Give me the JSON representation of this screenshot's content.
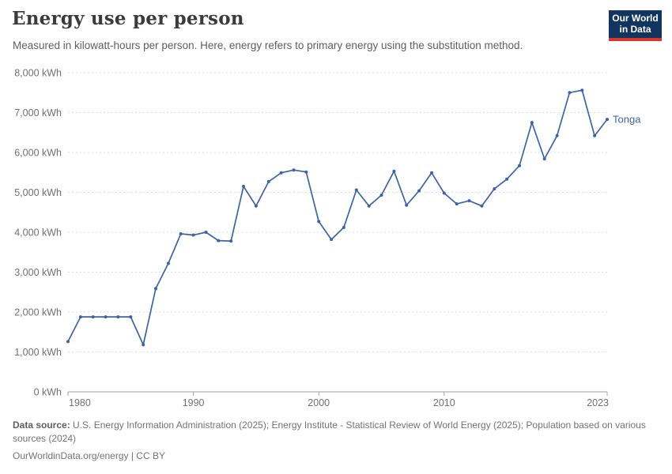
{
  "header": {
    "logo": {
      "line1": "Our World",
      "line2": "in Data"
    }
  },
  "chart_data": {
    "type": "line",
    "title": "Energy use per person",
    "subtitle": "Measured in kilowatt-hours per person. Here, energy refers to primary energy using the substitution method.",
    "x": [
      1980,
      1981,
      1982,
      1983,
      1984,
      1985,
      1986,
      1987,
      1988,
      1989,
      1990,
      1991,
      1992,
      1993,
      1994,
      1995,
      1996,
      1997,
      1998,
      1999,
      2000,
      2001,
      2002,
      2003,
      2004,
      2005,
      2006,
      2007,
      2008,
      2009,
      2010,
      2011,
      2012,
      2013,
      2014,
      2015,
      2016,
      2017,
      2018,
      2019,
      2020,
      2021,
      2022,
      2023
    ],
    "series": [
      {
        "name": "Tonga",
        "color": "#3e63a4",
        "values": [
          1260,
          1880,
          1880,
          1880,
          1880,
          1880,
          1180,
          2590,
          3220,
          3960,
          3930,
          4000,
          3790,
          3780,
          5150,
          4660,
          5270,
          5490,
          5560,
          5510,
          4270,
          3820,
          4120,
          5060,
          4660,
          4930,
          5530,
          4680,
          5040,
          5490,
          4980,
          4710,
          4790,
          4660,
          5090,
          5330,
          5670,
          6750,
          5840,
          6420,
          7500,
          7560,
          6420,
          6830
        ]
      }
    ],
    "xlim": [
      1980,
      2023
    ],
    "ylim": [
      0,
      8000
    ],
    "x_ticks": [
      1980,
      1990,
      2000,
      2010,
      2023
    ],
    "y_ticks": [
      0,
      1000,
      2000,
      3000,
      4000,
      5000,
      6000,
      7000,
      8000
    ],
    "y_tick_suffix": " kWh",
    "xlabel": "",
    "ylabel": "",
    "grid": "horizontal-dashed",
    "legend": "end-of-line-label",
    "end_label": "Tonga"
  },
  "footer": {
    "source_label": "Data source:",
    "source_text": "U.S. Energy Information Administration (2025); Energy Institute - Statistical Review of World Energy (2025); Population based on various sources (2024)",
    "link_line": "OurWorldinData.org/energy | CC BY"
  },
  "colors": {
    "line": "#3e63a4",
    "grid": "#dcdcdc",
    "axis": "#a3a3a3",
    "tick_text": "#707070",
    "title_text": "#3b3b3b",
    "subtitle_text": "#5c5e60",
    "footer_text": "#737373",
    "logo_bg": "#12355f",
    "logo_red": "#dc352c"
  }
}
